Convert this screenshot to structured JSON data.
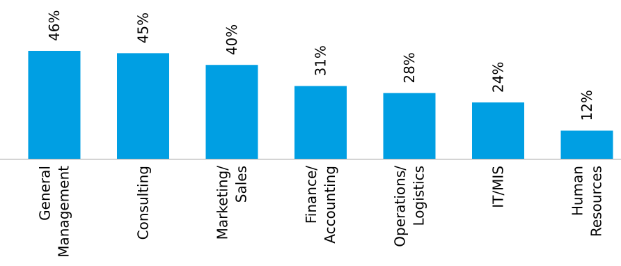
{
  "chart_data": {
    "type": "bar",
    "categories": [
      [
        "General",
        "Management"
      ],
      [
        "Consulting"
      ],
      [
        "Marketing/",
        "Sales"
      ],
      [
        "Finance/",
        "Accounting"
      ],
      [
        "Operations/",
        "Logistics"
      ],
      [
        "IT/MIS"
      ],
      [
        "Human",
        "Resources"
      ]
    ],
    "values": [
      46,
      45,
      40,
      31,
      28,
      24,
      12
    ],
    "value_labels": [
      "46%",
      "45%",
      "40%",
      "31%",
      "28%",
      "24%",
      "12%"
    ],
    "title": "",
    "xlabel": "",
    "ylabel": "",
    "ylim": [
      0,
      46
    ],
    "grid": false,
    "legend": "none",
    "bar_color": "#009FE3",
    "axis_color": "#9E9E9E"
  }
}
